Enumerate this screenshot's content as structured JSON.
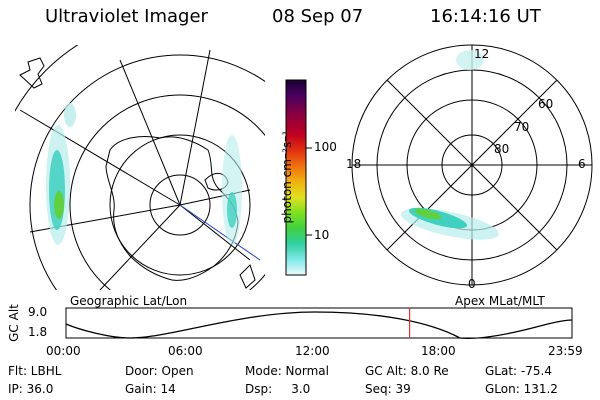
{
  "header": {
    "instrument": "Ultraviolet Imager",
    "date": "08 Sep 07",
    "time": "16:14:16 UT"
  },
  "left_panel": {
    "caption": "Geographic Lat/Lon"
  },
  "right_panel": {
    "caption": "Apex MLat/MLT",
    "mlt_labels": {
      "top": "12",
      "left": "18",
      "right": "6",
      "bottom": "0"
    },
    "lat_labels": [
      "60",
      "70",
      "80"
    ]
  },
  "colorbar": {
    "unit_label": "photon cm⁻²s⁻¹",
    "ticks": [
      "100",
      "10"
    ],
    "colors": [
      "#1a0030",
      "#4a0060",
      "#8a0040",
      "#c00020",
      "#e03010",
      "#f07010",
      "#f0a010",
      "#e0d020",
      "#c0e020",
      "#80e020",
      "#40d040",
      "#30d0a0",
      "#60e0d0",
      "#a0f0f0",
      "#e0fafa"
    ]
  },
  "altitude_strip": {
    "axis_label": "GC Alt",
    "y_ticks": [
      "9.0",
      "1.8"
    ],
    "x_ticks": [
      "00:00",
      "06:00",
      "12:00",
      "18:00",
      "23:59"
    ],
    "marker_time_fraction": 0.679,
    "marker_color": "#e03030"
  },
  "info": {
    "row1": [
      "Flt: LBHL",
      "Door: Open",
      "Mode: Normal",
      "GC Alt: 8.0 Re",
      "GLat: -75.4"
    ],
    "row2": [
      "IP: 36.0",
      "Gain: 14",
      "Dsp:     3.0",
      "Seq: 39",
      "GLon: 131.2"
    ]
  },
  "aurora_color": "#40d0c0"
}
